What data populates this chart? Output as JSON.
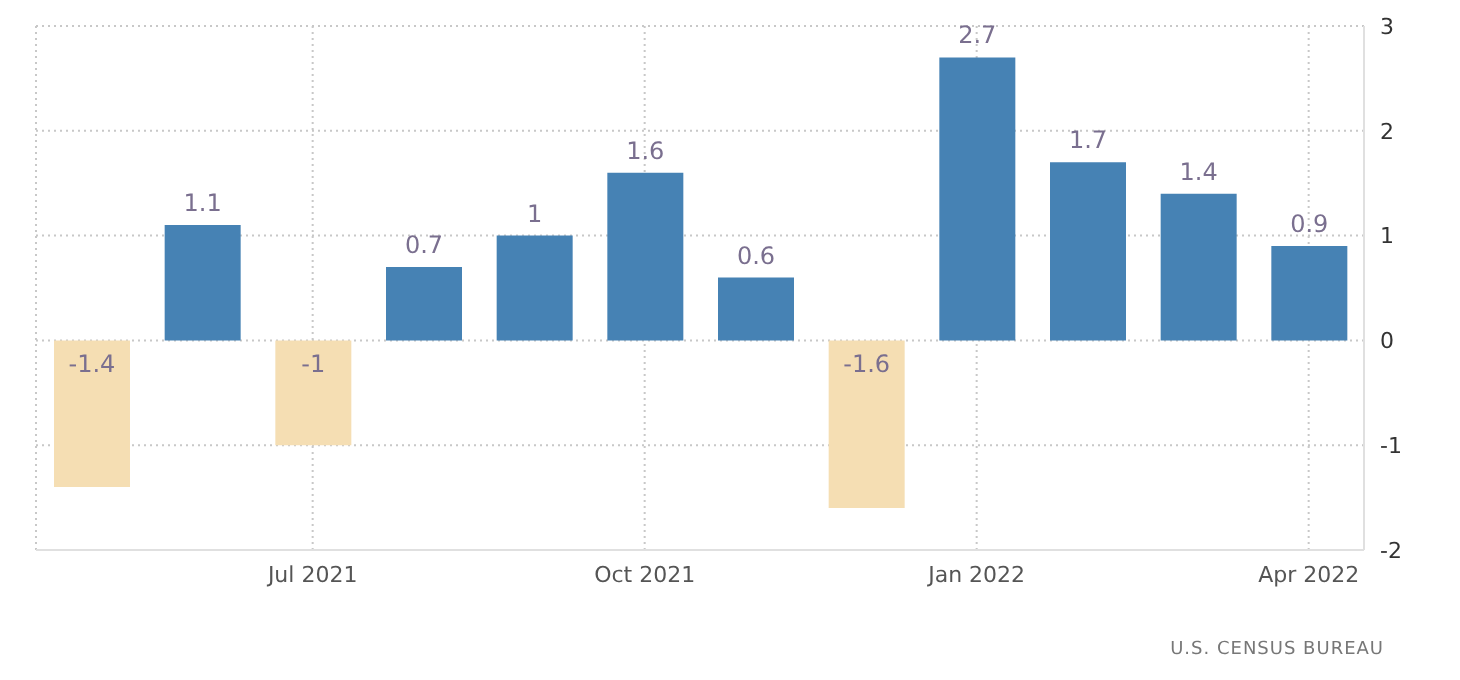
{
  "chart_data": {
    "type": "bar",
    "categories": [
      null,
      null,
      "Jul 2021",
      null,
      null,
      "Oct 2021",
      null,
      null,
      "Jan 2022",
      null,
      null,
      "Apr 2022"
    ],
    "values": [
      -1.4,
      1.1,
      -1,
      0.7,
      1,
      1.6,
      0.6,
      -1.6,
      2.7,
      1.7,
      1.4,
      0.9
    ],
    "colors": [
      "#f5deb3",
      "#4682b4",
      "#f5deb3",
      "#4682b4",
      "#4682b4",
      "#4682b4",
      "#4682b4",
      "#f5deb3",
      "#4682b4",
      "#4682b4",
      "#4682b4",
      "#4682b4"
    ],
    "ylim": [
      -2,
      3
    ],
    "yticks": [
      -2,
      -1,
      0,
      1,
      2,
      3
    ],
    "grid": true,
    "data_labels": true,
    "annotations": [
      "U.S. CENSUS BUREAU"
    ]
  }
}
